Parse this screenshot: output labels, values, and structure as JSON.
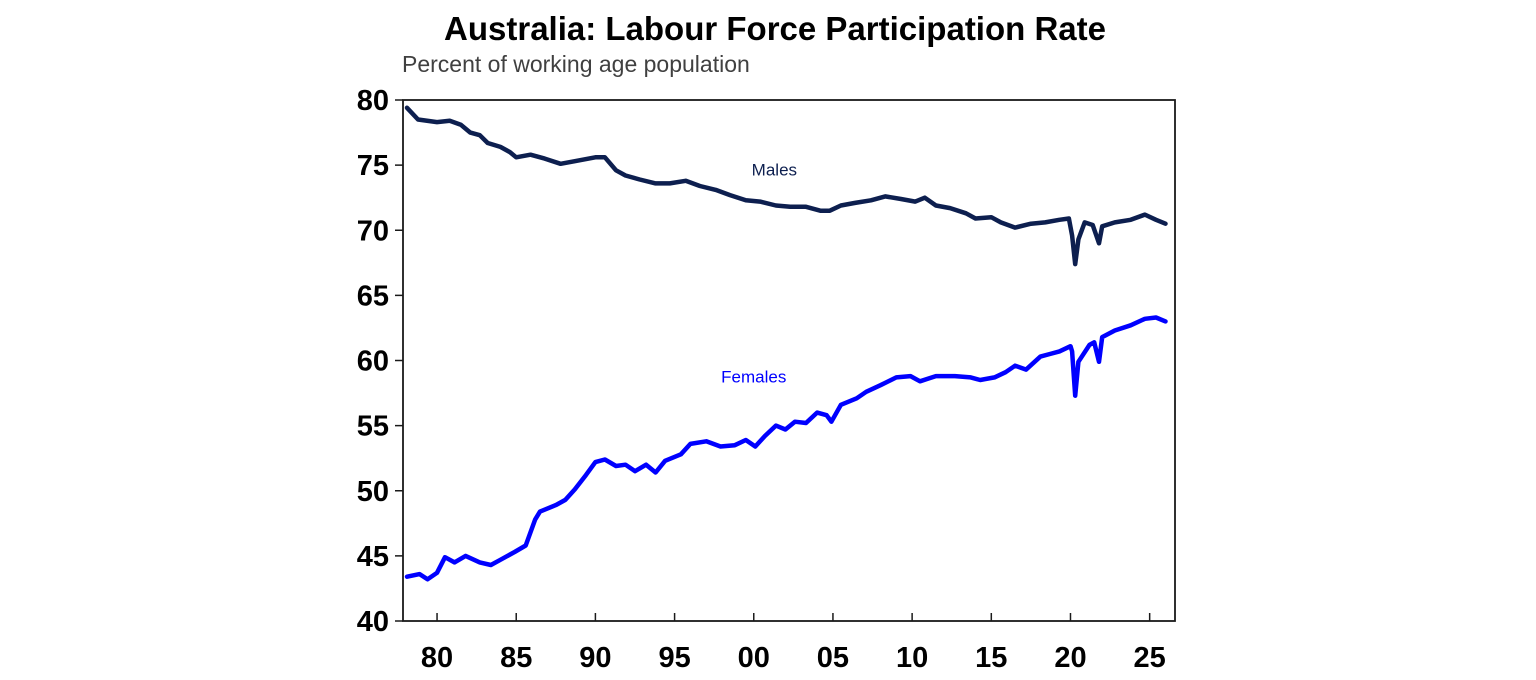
{
  "chart_data": {
    "type": "line",
    "title": "Australia: Labour Force Participation Rate",
    "subtitle": "Percent of working age population",
    "xlabel": "",
    "ylabel": "",
    "xlim": [
      1977.85,
      2026.6
    ],
    "ylim": [
      40,
      80
    ],
    "grid": false,
    "legend": "inline labels",
    "x_tick_labels": [
      "80",
      "85",
      "90",
      "95",
      "00",
      "05",
      "10",
      "15",
      "20",
      "25"
    ],
    "x_tick_values": [
      1980,
      1985,
      1990,
      1995,
      2000,
      2005,
      2010,
      2015,
      2020,
      2025
    ],
    "y_tick_labels": [
      "40",
      "45",
      "50",
      "55",
      "60",
      "65",
      "70",
      "75",
      "80"
    ],
    "y_tick_values": [
      40,
      45,
      50,
      55,
      60,
      65,
      70,
      75,
      80
    ],
    "series": [
      {
        "name": "Males",
        "color": "#0d1f4f",
        "label_pos": {
          "x": 2001.3,
          "y": 74.2
        },
        "points": [
          [
            1978.1,
            79.4
          ],
          [
            1978.8,
            78.5
          ],
          [
            1980.0,
            78.3
          ],
          [
            1980.8,
            78.4
          ],
          [
            1981.5,
            78.1
          ],
          [
            1982.1,
            77.5
          ],
          [
            1982.7,
            77.3
          ],
          [
            1983.2,
            76.7
          ],
          [
            1984.0,
            76.4
          ],
          [
            1984.6,
            76.0
          ],
          [
            1985.0,
            75.6
          ],
          [
            1985.9,
            75.8
          ],
          [
            1986.8,
            75.5
          ],
          [
            1987.8,
            75.1
          ],
          [
            1988.7,
            75.3
          ],
          [
            1990.0,
            75.6
          ],
          [
            1990.6,
            75.6
          ],
          [
            1991.3,
            74.6
          ],
          [
            1991.9,
            74.2
          ],
          [
            1992.8,
            73.9
          ],
          [
            1993.8,
            73.6
          ],
          [
            1994.7,
            73.6
          ],
          [
            1995.7,
            73.8
          ],
          [
            1996.6,
            73.4
          ],
          [
            1997.6,
            73.1
          ],
          [
            1998.5,
            72.7
          ],
          [
            1999.5,
            72.3
          ],
          [
            2000.4,
            72.2
          ],
          [
            2001.4,
            71.9
          ],
          [
            2002.3,
            71.8
          ],
          [
            2003.3,
            71.8
          ],
          [
            2004.2,
            71.5
          ],
          [
            2004.8,
            71.5
          ],
          [
            2005.5,
            71.9
          ],
          [
            2006.4,
            72.1
          ],
          [
            2007.4,
            72.3
          ],
          [
            2008.3,
            72.6
          ],
          [
            2009.3,
            72.4
          ],
          [
            2010.2,
            72.2
          ],
          [
            2010.8,
            72.5
          ],
          [
            2011.5,
            71.9
          ],
          [
            2012.4,
            71.7
          ],
          [
            2013.4,
            71.3
          ],
          [
            2014.0,
            70.9
          ],
          [
            2015.0,
            71.0
          ],
          [
            2015.6,
            70.6
          ],
          [
            2016.5,
            70.2
          ],
          [
            2017.5,
            70.5
          ],
          [
            2018.4,
            70.6
          ],
          [
            2019.3,
            70.8
          ],
          [
            2019.9,
            70.9
          ],
          [
            2020.1,
            69.6
          ],
          [
            2020.3,
            67.4
          ],
          [
            2020.5,
            69.3
          ],
          [
            2020.9,
            70.6
          ],
          [
            2021.4,
            70.4
          ],
          [
            2021.8,
            69.0
          ],
          [
            2022.0,
            70.3
          ],
          [
            2022.8,
            70.6
          ],
          [
            2023.8,
            70.8
          ],
          [
            2024.7,
            71.2
          ],
          [
            2025.4,
            70.8
          ],
          [
            2026.0,
            70.5
          ]
        ]
      },
      {
        "name": "Females",
        "color": "#0000ff",
        "label_pos": {
          "x": 2000.0,
          "y": 58.3
        },
        "points": [
          [
            1978.1,
            43.4
          ],
          [
            1978.9,
            43.6
          ],
          [
            1979.4,
            43.2
          ],
          [
            1980.0,
            43.7
          ],
          [
            1980.5,
            44.9
          ],
          [
            1981.1,
            44.5
          ],
          [
            1981.8,
            45.0
          ],
          [
            1982.7,
            44.5
          ],
          [
            1983.4,
            44.3
          ],
          [
            1984.0,
            44.7
          ],
          [
            1984.9,
            45.3
          ],
          [
            1985.6,
            45.8
          ],
          [
            1986.2,
            47.8
          ],
          [
            1986.5,
            48.4
          ],
          [
            1987.5,
            48.9
          ],
          [
            1988.1,
            49.3
          ],
          [
            1988.7,
            50.1
          ],
          [
            1989.4,
            51.2
          ],
          [
            1990.0,
            52.2
          ],
          [
            1990.6,
            52.4
          ],
          [
            1991.3,
            51.9
          ],
          [
            1991.9,
            52.0
          ],
          [
            1992.5,
            51.5
          ],
          [
            1993.2,
            52.0
          ],
          [
            1993.8,
            51.4
          ],
          [
            1994.4,
            52.3
          ],
          [
            1995.4,
            52.8
          ],
          [
            1996.0,
            53.6
          ],
          [
            1997.0,
            53.8
          ],
          [
            1997.9,
            53.4
          ],
          [
            1998.8,
            53.5
          ],
          [
            1999.5,
            53.9
          ],
          [
            2000.1,
            53.4
          ],
          [
            2000.7,
            54.2
          ],
          [
            2001.4,
            55.0
          ],
          [
            2002.0,
            54.7
          ],
          [
            2002.6,
            55.3
          ],
          [
            2003.3,
            55.2
          ],
          [
            2004.0,
            56.0
          ],
          [
            2004.6,
            55.8
          ],
          [
            2004.9,
            55.3
          ],
          [
            2005.5,
            56.6
          ],
          [
            2006.5,
            57.1
          ],
          [
            2007.1,
            57.6
          ],
          [
            2008.0,
            58.1
          ],
          [
            2009.0,
            58.7
          ],
          [
            2009.9,
            58.8
          ],
          [
            2010.5,
            58.4
          ],
          [
            2011.5,
            58.8
          ],
          [
            2012.7,
            58.8
          ],
          [
            2013.7,
            58.7
          ],
          [
            2014.3,
            58.5
          ],
          [
            2015.2,
            58.7
          ],
          [
            2015.9,
            59.1
          ],
          [
            2016.5,
            59.6
          ],
          [
            2017.2,
            59.3
          ],
          [
            2018.1,
            60.3
          ],
          [
            2018.7,
            60.5
          ],
          [
            2019.3,
            60.7
          ],
          [
            2020.0,
            61.1
          ],
          [
            2020.1,
            60.7
          ],
          [
            2020.3,
            57.3
          ],
          [
            2020.5,
            59.9
          ],
          [
            2021.2,
            61.2
          ],
          [
            2021.5,
            61.4
          ],
          [
            2021.8,
            59.9
          ],
          [
            2022.0,
            61.8
          ],
          [
            2022.8,
            62.3
          ],
          [
            2023.8,
            62.7
          ],
          [
            2024.7,
            63.2
          ],
          [
            2025.4,
            63.3
          ],
          [
            2026.0,
            63.0
          ]
        ]
      }
    ]
  }
}
